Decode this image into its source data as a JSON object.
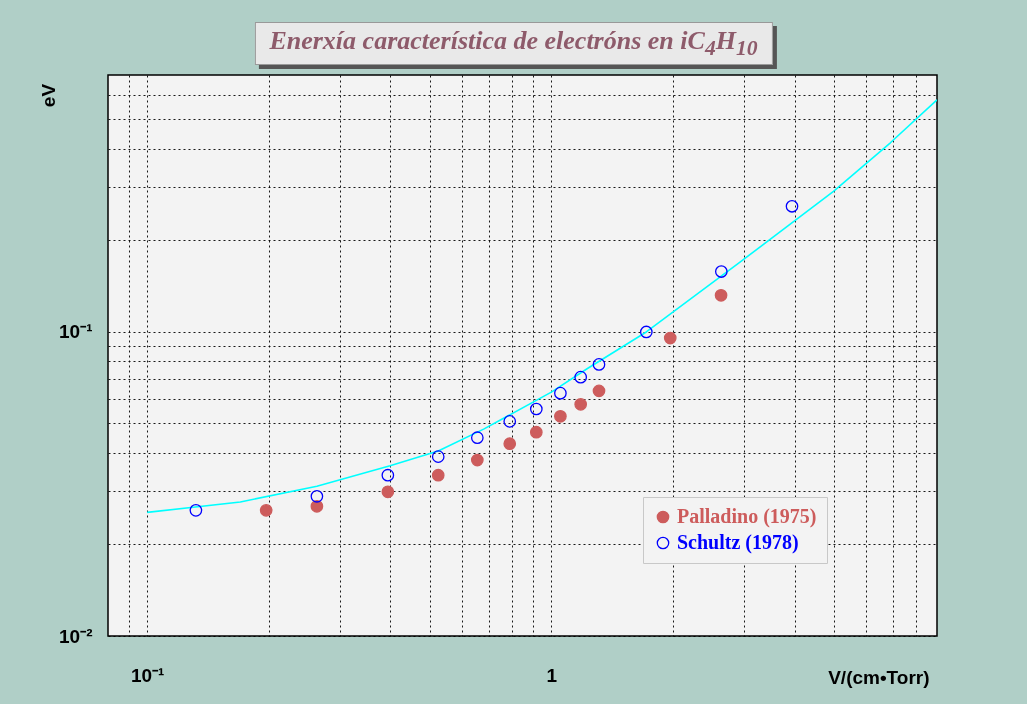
{
  "chart_data": {
    "type": "scatter",
    "title": "Enerxía característica de electróns en iC$_{4}$H$_{10}$",
    "xlabel": "V/(cm•Torr)",
    "ylabel": "eV",
    "log": "xy",
    "grid": true,
    "legend": "bottom right",
    "xlim": [
      0.08,
      9
    ],
    "ylim": [
      0.01,
      0.7
    ],
    "xticks": [
      {
        "value": 0.09,
        "label": null
      },
      {
        "value": 0.1,
        "label": "10⁻¹"
      },
      {
        "value": 0.2,
        "label": null
      },
      {
        "value": 0.3,
        "label": null
      },
      {
        "value": 0.4,
        "label": null
      },
      {
        "value": 0.5,
        "label": null
      },
      {
        "value": 0.6,
        "label": null
      },
      {
        "value": 0.7,
        "label": null
      },
      {
        "value": 0.8,
        "label": null
      },
      {
        "value": 0.9,
        "label": null
      },
      1,
      {
        "value": 2,
        "label": null
      },
      {
        "value": 3,
        "label": null
      },
      {
        "value": 4,
        "label": null
      },
      {
        "value": 5,
        "label": null
      },
      {
        "value": 6,
        "label": null
      },
      {
        "value": 7,
        "label": null
      },
      {
        "value": 8,
        "label": null
      }
    ],
    "yticks": [
      {
        "value": 0.01,
        "label": "10⁻²"
      },
      {
        "value": 0.02,
        "label": null
      },
      {
        "value": 0.03,
        "label": null
      },
      {
        "value": 0.04,
        "label": null
      },
      {
        "value": 0.05,
        "label": null
      },
      {
        "value": 0.06,
        "label": null
      },
      {
        "value": 0.07,
        "label": null
      },
      {
        "value": 0.08,
        "label": null
      },
      {
        "value": 0.09,
        "label": null
      },
      {
        "value": 0.1,
        "label": "10⁻¹"
      },
      {
        "value": 0.2,
        "label": null
      },
      {
        "value": 0.3,
        "label": null
      },
      {
        "value": 0.4,
        "label": null
      },
      {
        "value": 0.5,
        "label": null
      },
      {
        "value": 0.6,
        "label": null
      }
    ],
    "series": [
      {
        "type": "line",
        "marker": "none",
        "color": "#00ffff",
        "x": [
          0.1,
          0.17,
          0.263,
          0.399,
          0.525,
          0.68,
          1.0,
          1.226,
          1.718,
          2.935,
          4.99,
          6.9,
          9.0
        ],
        "values": [
          0.0255,
          0.0276,
          0.0311,
          0.0363,
          0.0406,
          0.0479,
          0.0634,
          0.0757,
          0.1,
          0.17,
          0.29,
          0.419,
          0.58
        ]
      },
      {
        "name": "Palladino (1975)",
        "color": "#cd5c5c",
        "marker": "circle",
        "x": [
          0.197,
          0.263,
          0.394,
          0.525,
          0.656,
          0.789,
          0.918,
          1.053,
          1.182,
          1.312,
          1.969,
          2.63
        ],
        "values": [
          0.0259,
          0.0267,
          0.0298,
          0.0338,
          0.0379,
          0.0429,
          0.0468,
          0.0528,
          0.0578,
          0.064,
          0.0955,
          0.132
        ]
      },
      {
        "name": "Schultz (1978)",
        "color": "#0000ff",
        "marker": "circle",
        "x": [
          0.132,
          0.263,
          0.394,
          0.525,
          0.656,
          0.789,
          0.918,
          1.053,
          1.182,
          1.312,
          1.718,
          2.634,
          3.94
        ],
        "values": [
          0.0259,
          0.0288,
          0.0338,
          0.0389,
          0.0449,
          0.0508,
          0.0558,
          0.0629,
          0.071,
          0.0782,
          0.1,
          0.158,
          0.259
        ]
      }
    ]
  }
}
